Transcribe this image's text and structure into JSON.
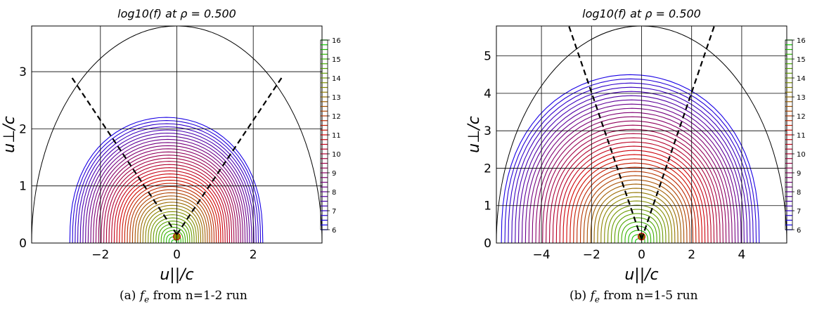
{
  "figure": {
    "captions": [
      {
        "label": "(a)",
        "text": "from n=1-2 run"
      },
      {
        "label": "(b)",
        "text": "from n=1-5 run"
      }
    ]
  },
  "chart_data": [
    {
      "type": "contour",
      "title": "log10(f)   at  ρ = 0.500",
      "xlabel": "u||/c",
      "ylabel": "u⊥/c",
      "xlim": [
        -3.8,
        3.8
      ],
      "ylim": [
        0,
        3.8
      ],
      "xticks": [
        -2,
        0,
        2
      ],
      "yticks": [
        0,
        1,
        2,
        3
      ],
      "grid": true,
      "boundary_ellipse": {
        "a": 3.8,
        "b": 3.8
      },
      "trapped_passing_lines": {
        "slope_deg": 45,
        "apex": [
          0,
          0.15
        ],
        "extent_x": 2.75
      },
      "contour_outer": {
        "x_left": -2.8,
        "x_right": 2.25,
        "y_top": 2.2
      },
      "colorbar": {
        "min": 6,
        "max": 16,
        "ticks": [
          6,
          7,
          8,
          9,
          10,
          11,
          12,
          13,
          14,
          15,
          16
        ],
        "colors": [
          "#0000ff",
          "#7a007a",
          "#d40000",
          "#8a8a00",
          "#00cc00"
        ]
      }
    },
    {
      "type": "contour",
      "title": "log10(f)   at  ρ = 0.500",
      "xlabel": "u||/c",
      "ylabel": "u⊥/c",
      "xlim": [
        -5.8,
        5.8
      ],
      "ylim": [
        0,
        5.8
      ],
      "xticks": [
        -4,
        -2,
        0,
        2,
        4
      ],
      "yticks": [
        0,
        1,
        2,
        3,
        4,
        5
      ],
      "grid": true,
      "boundary_ellipse": {
        "a": 5.8,
        "b": 5.8
      },
      "trapped_passing_lines": {
        "slope_deg": 63,
        "apex": [
          0,
          0.1
        ],
        "extent_x": 4.0
      },
      "contour_outer": {
        "x_left": -5.6,
        "x_right": 4.7,
        "y_top": 4.5
      },
      "colorbar": {
        "min": 6,
        "max": 16,
        "ticks": [
          6,
          7,
          8,
          9,
          10,
          11,
          12,
          13,
          14,
          15,
          16
        ],
        "colors": [
          "#0000ff",
          "#7a007a",
          "#d40000",
          "#8a8a00",
          "#00cc00"
        ]
      }
    }
  ]
}
